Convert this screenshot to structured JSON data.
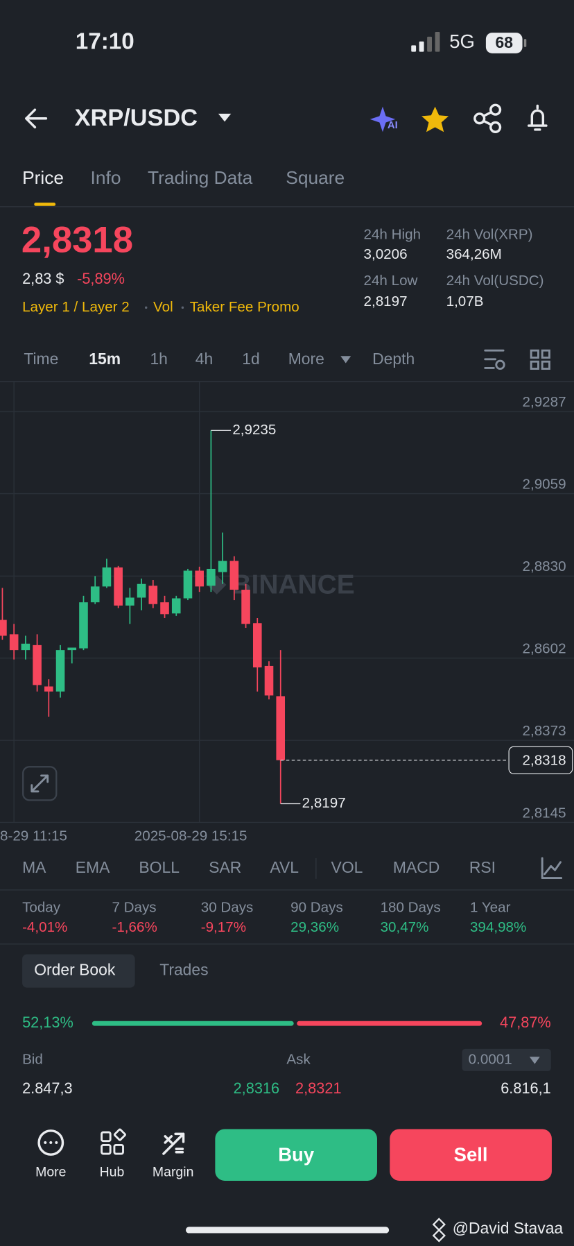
{
  "status_bar": {
    "time": "17:10",
    "network": "5G",
    "battery": "68"
  },
  "header": {
    "pair": "XRP/USDC"
  },
  "tabs": [
    "Price",
    "Info",
    "Trading Data",
    "Square"
  ],
  "price": {
    "last": "2,8318",
    "fiat": "2,83 $",
    "change": "-5,89%",
    "tags": [
      "Layer 1 / Layer 2",
      "Vol",
      "Taker Fee Promo"
    ]
  },
  "stats": [
    {
      "label": "24h High",
      "value": "3,0206"
    },
    {
      "label": "24h Vol(XRP)",
      "value": "364,26M"
    },
    {
      "label": "24h Low",
      "value": "2,8197"
    },
    {
      "label": "24h Vol(USDC)",
      "value": "1,07B"
    }
  ],
  "intervals": [
    "Time",
    "15m",
    "1h",
    "4h",
    "1d",
    "More",
    "Depth"
  ],
  "chart_data": {
    "type": "candlestick",
    "watermark": "BINANCE",
    "categories": [
      null,
      "8-29 11:15",
      null,
      null,
      null,
      null,
      null,
      null,
      null,
      null,
      null,
      null,
      null,
      null,
      null,
      null,
      null,
      "2025-08-29 15:15",
      null,
      null,
      null,
      null,
      null,
      null,
      null
    ],
    "open": [
      2.8708,
      2.8668,
      2.8624,
      2.8638,
      2.8523,
      2.8509,
      2.8624,
      2.8629,
      2.8757,
      2.8801,
      2.8854,
      2.8748,
      2.877,
      2.8803,
      2.8757,
      2.8726,
      2.8768,
      2.8845,
      2.8803,
      2.8841,
      2.8872,
      2.8792,
      2.8699,
      2.858,
      2.8496
    ],
    "high": [
      2.8797,
      2.8697,
      2.8664,
      2.8668,
      2.8543,
      2.8638,
      2.8631,
      2.8775,
      2.883,
      2.8878,
      2.8858,
      2.8797,
      2.8823,
      2.8819,
      2.8775,
      2.8775,
      2.885,
      2.8856,
      2.9235,
      2.8951,
      2.8885,
      2.8808,
      2.8713,
      2.8593,
      2.8624
    ],
    "low": [
      2.8653,
      2.8598,
      2.8598,
      2.8509,
      2.8439,
      2.8492,
      2.8587,
      2.8624,
      2.8752,
      2.8797,
      2.8741,
      2.8697,
      2.8735,
      2.8741,
      2.8713,
      2.8719,
      2.8763,
      2.8786,
      2.8786,
      2.8808,
      2.8763,
      2.8686,
      2.8509,
      2.8487,
      2.8197
    ],
    "close": [
      2.8664,
      2.8624,
      2.8642,
      2.8527,
      2.8509,
      2.8624,
      2.8631,
      2.8757,
      2.8801,
      2.8854,
      2.8748,
      2.877,
      2.8808,
      2.8752,
      2.8724,
      2.8768,
      2.8845,
      2.8801,
      2.885,
      2.8872,
      2.8792,
      2.8697,
      2.8576,
      2.8498,
      2.8318
    ],
    "up_color": "#2ebd85",
    "down_color": "#f6465d",
    "ylim": [
      2.8145,
      2.9371
    ],
    "yticks": [
      {
        "value": 2.9287,
        "label": "2,9287"
      },
      {
        "value": 2.9059,
        "label": "2,9059"
      },
      {
        "value": 2.883,
        "label": "2,8830"
      },
      {
        "value": 2.8602,
        "label": "2,8602"
      },
      {
        "value": 2.8373,
        "label": "2,8373"
      },
      {
        "value": 2.8145,
        "label": "2,8145"
      }
    ],
    "annotations": [
      {
        "value": 2.9235,
        "label": "2,9235"
      },
      {
        "value": 2.8197,
        "label": "2,8197"
      }
    ],
    "last_price": {
      "value": 2.8318,
      "label": "2,8318"
    },
    "grid": true
  },
  "indicators": [
    "MA",
    "EMA",
    "BOLL",
    "SAR",
    "AVL",
    "VOL",
    "MACD",
    "RSI"
  ],
  "performance": [
    {
      "label": "Today",
      "value": "-4,01%"
    },
    {
      "label": "7 Days",
      "value": "-1,66%"
    },
    {
      "label": "30 Days",
      "value": "-9,17%"
    },
    {
      "label": "90 Days",
      "value": "29,36%"
    },
    {
      "label": "180 Days",
      "value": "30,47%"
    },
    {
      "label": "1 Year",
      "value": "394,98%"
    }
  ],
  "order_book": {
    "tabs": [
      "Order Book",
      "Trades"
    ],
    "ratio": {
      "values": [
        52.13,
        47.87
      ],
      "value_labels": [
        "52,13%",
        "47,87%"
      ],
      "colors": [
        "#2ebd85",
        "#f6465d"
      ]
    },
    "bid_label": "Bid",
    "ask_label": "Ask",
    "precision": "0.0001",
    "rows": [
      [
        "2.847,3",
        "2,8316",
        "2,8321",
        "6.816,1"
      ]
    ]
  },
  "bottom_nav": {
    "items": [
      "More",
      "Hub",
      "Margin"
    ],
    "buy": "Buy",
    "sell": "Sell"
  },
  "credit": "@David Stavaa"
}
